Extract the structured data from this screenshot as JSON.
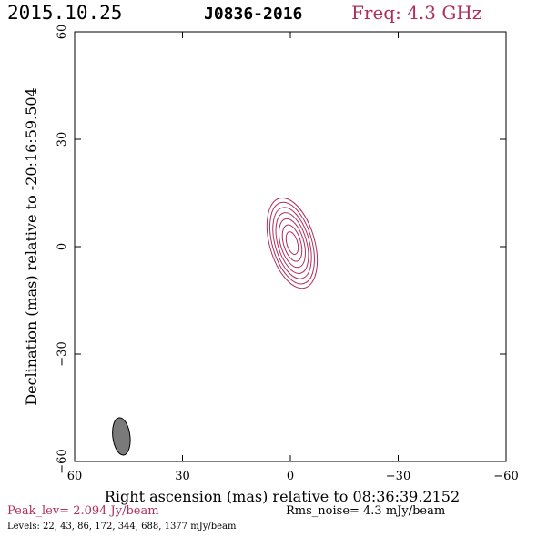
{
  "header": {
    "date": "2015.10.25",
    "source": "J0836-2016",
    "frequency": "Freq: 4.3 GHz"
  },
  "footer": {
    "peak": "Peak_lev=  2.094 Jy/beam",
    "rms": "Rms_noise=  4.3 mJy/beam",
    "levels": "Levels:  22,  43,  86, 172, 344, 688, 1377 mJy/beam"
  },
  "colors": {
    "contour": "#b0305a",
    "beam_fill": "#7a7a7a",
    "axis": "#000000"
  },
  "chart_data": {
    "type": "contour",
    "title": "J0836-2016",
    "xlabel": "Right ascension (mas) relative to 08:36:39.2152",
    "ylabel": "Declination (mas) relative to -20:16:59.504",
    "xlim": [
      60,
      -60
    ],
    "ylim": [
      -60,
      60
    ],
    "xticks": [
      60,
      30,
      0,
      -30,
      -60
    ],
    "yticks": [
      60,
      30,
      0,
      -30,
      -60
    ],
    "xtick_labels": [
      "60",
      "30",
      "0",
      "−30",
      "−60"
    ],
    "ytick_labels": [
      "60",
      "30",
      "0",
      "−30",
      "−60"
    ],
    "peak_jy_per_beam": 2.094,
    "rms_mjy_per_beam": 4.3,
    "levels_mjy_per_beam": [
      22,
      43,
      86,
      172,
      344,
      688,
      1377
    ],
    "component": {
      "ra_mas": -0.5,
      "dec_mas": 1.0,
      "position_angle_deg": -16,
      "contours": [
        {
          "level": 22,
          "major_mas": 26.0,
          "minor_mas": 12.5
        },
        {
          "level": 43,
          "major_mas": 23.5,
          "minor_mas": 11.0
        },
        {
          "level": 86,
          "major_mas": 20.5,
          "minor_mas": 9.5
        },
        {
          "level": 172,
          "major_mas": 17.5,
          "minor_mas": 8.0
        },
        {
          "level": 344,
          "major_mas": 14.0,
          "minor_mas": 6.5
        },
        {
          "level": 688,
          "major_mas": 10.5,
          "minor_mas": 4.8
        },
        {
          "level": 1377,
          "major_mas": 6.5,
          "minor_mas": 3.0
        }
      ]
    },
    "beam": {
      "ra_mas": 47.0,
      "dec_mas": -53.0,
      "major_mas": 10.5,
      "minor_mas": 4.8,
      "position_angle_deg": -7
    },
    "grid": false
  }
}
